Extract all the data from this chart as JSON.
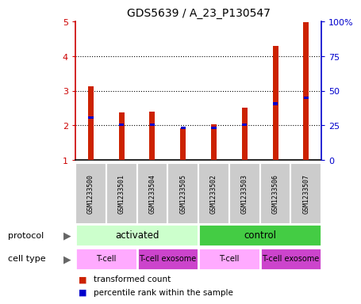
{
  "title": "GDS5639 / A_23_P130547",
  "samples": [
    "GSM1233500",
    "GSM1233501",
    "GSM1233504",
    "GSM1233505",
    "GSM1233502",
    "GSM1233503",
    "GSM1233506",
    "GSM1233507"
  ],
  "red_values": [
    3.12,
    2.38,
    2.4,
    1.92,
    2.02,
    2.5,
    4.3,
    4.97
  ],
  "blue_values": [
    2.22,
    2.02,
    2.02,
    1.93,
    1.93,
    2.02,
    2.62,
    2.8
  ],
  "ylim": [
    1,
    5
  ],
  "yticks_left": [
    1,
    2,
    3,
    4,
    5
  ],
  "yticks_right": [
    0,
    25,
    50,
    75,
    100
  ],
  "ylabel_left_color": "#cc0000",
  "ylabel_right_color": "#0000cc",
  "bar_red_color": "#cc2200",
  "bar_blue_color": "#0000cc",
  "protocol_groups": [
    {
      "label": "activated",
      "start": 0,
      "end": 4,
      "color": "#ccffcc"
    },
    {
      "label": "control",
      "start": 4,
      "end": 8,
      "color": "#44cc44"
    }
  ],
  "cell_type_groups": [
    {
      "label": "T-cell",
      "start": 0,
      "end": 2,
      "color": "#ffaaff"
    },
    {
      "label": "T-cell exosome",
      "start": 2,
      "end": 4,
      "color": "#cc44cc"
    },
    {
      "label": "T-cell",
      "start": 4,
      "end": 6,
      "color": "#ffaaff"
    },
    {
      "label": "T-cell exosome",
      "start": 6,
      "end": 8,
      "color": "#cc44cc"
    }
  ],
  "legend_red_label": "transformed count",
  "legend_blue_label": "percentile rank within the sample",
  "protocol_label": "protocol",
  "cell_type_label": "cell type",
  "bar_width": 0.18,
  "sample_bg_color": "#cccccc"
}
